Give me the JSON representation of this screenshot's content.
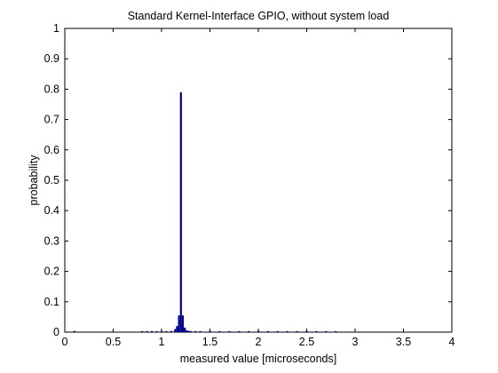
{
  "chart_data": {
    "type": "bar",
    "title": "Standard Kernel-Interface GPIO, without system load",
    "xlabel": "measured value [microseconds]",
    "ylabel": "probability",
    "xlim": [
      0,
      4
    ],
    "ylim": [
      0,
      1
    ],
    "xticks": [
      "0",
      "0.5",
      "1",
      "1.5",
      "2",
      "2.5",
      "3",
      "3.5",
      "4"
    ],
    "yticks": [
      "0",
      "0.1",
      "0.2",
      "0.3",
      "0.4",
      "0.5",
      "0.6",
      "0.7",
      "0.8",
      "0.9",
      "1"
    ],
    "grid": false,
    "bar_color": "#00008B",
    "bin_width": 0.02,
    "series": [
      {
        "x": [
          0.1,
          0.8,
          0.85,
          0.9,
          0.95,
          1.0,
          1.05,
          1.1,
          1.14,
          1.16,
          1.18,
          1.2,
          1.22,
          1.24,
          1.26,
          1.28,
          1.3,
          1.35,
          1.4,
          1.5,
          1.6,
          1.7,
          1.8,
          1.9,
          2.0,
          2.1,
          2.2,
          2.3,
          2.4,
          2.5,
          2.6,
          2.7,
          2.8
        ],
        "values": [
          0.004,
          0.002,
          0.002,
          0.002,
          0.002,
          0.002,
          0.003,
          0.004,
          0.01,
          0.02,
          0.055,
          0.79,
          0.055,
          0.015,
          0.006,
          0.004,
          0.003,
          0.003,
          0.002,
          0.002,
          0.002,
          0.002,
          0.002,
          0.002,
          0.002,
          0.002,
          0.002,
          0.002,
          0.002,
          0.002,
          0.002,
          0.002,
          0.002
        ]
      }
    ]
  }
}
